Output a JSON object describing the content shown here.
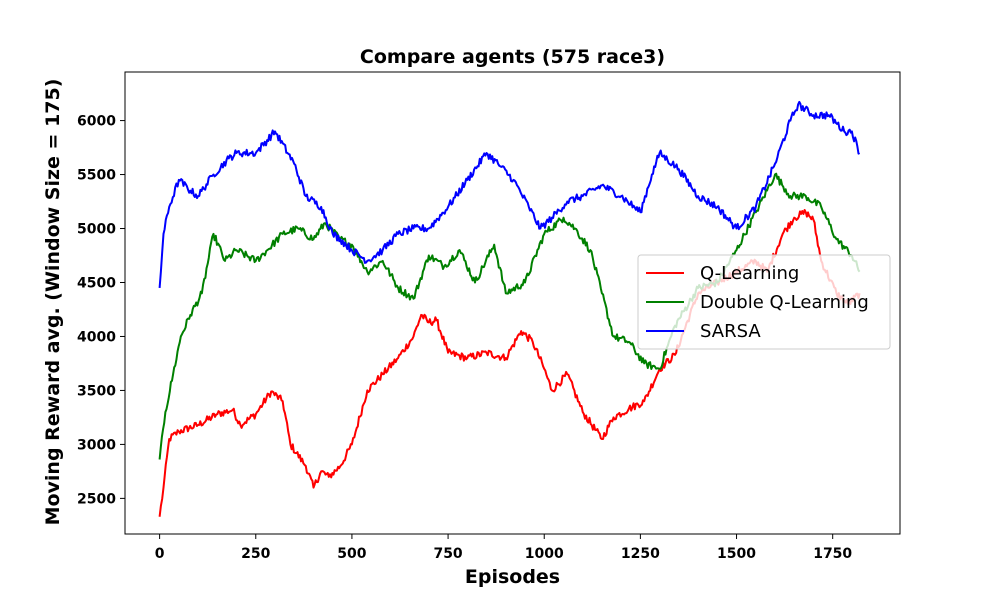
{
  "chart_data": {
    "type": "line",
    "title": "Compare agents (575 race3)",
    "xlabel": "Episodes",
    "ylabel": "Moving Reward avg. (Window Size = 175)",
    "xlim": [
      -90,
      1925
    ],
    "ylim": [
      2170,
      6450
    ],
    "xticks": [
      0,
      250,
      500,
      750,
      1000,
      1250,
      1500,
      1750
    ],
    "yticks": [
      2500,
      3000,
      3500,
      4000,
      4500,
      5000,
      5500,
      6000
    ],
    "grid": false,
    "legend_position": "center-right",
    "series": [
      {
        "name": "Q-Learning",
        "color": "#ff0000",
        "x": [
          0,
          10,
          25,
          50,
          100,
          150,
          190,
          210,
          250,
          290,
          320,
          340,
          380,
          400,
          420,
          440,
          470,
          500,
          540,
          580,
          620,
          660,
          680,
          700,
          720,
          750,
          800,
          850,
          900,
          940,
          970,
          1000,
          1020,
          1060,
          1100,
          1150,
          1180,
          1220,
          1260,
          1300,
          1340,
          1400,
          1450,
          1500,
          1550,
          1580,
          1620,
          1650,
          1680,
          1700,
          1720,
          1760,
          1790,
          1820
        ],
        "values": [
          2330,
          2600,
          3050,
          3120,
          3180,
          3280,
          3320,
          3180,
          3280,
          3490,
          3400,
          3000,
          2800,
          2600,
          2750,
          2700,
          2800,
          3000,
          3500,
          3650,
          3800,
          4000,
          4200,
          4130,
          4150,
          3850,
          3800,
          3850,
          3800,
          4050,
          3950,
          3700,
          3500,
          3650,
          3300,
          3050,
          3250,
          3330,
          3400,
          3700,
          3830,
          4400,
          4500,
          4600,
          4700,
          4600,
          4950,
          5100,
          5150,
          5080,
          4700,
          4400,
          4300,
          4400
        ]
      },
      {
        "name": "Double Q-Learning",
        "color": "#008000",
        "x": [
          0,
          15,
          35,
          55,
          80,
          110,
          140,
          170,
          200,
          250,
          280,
          320,
          360,
          400,
          430,
          470,
          500,
          540,
          580,
          620,
          660,
          700,
          740,
          780,
          820,
          870,
          900,
          950,
          1000,
          1050,
          1080,
          1120,
          1150,
          1180,
          1220,
          1260,
          1300,
          1340,
          1400,
          1450,
          1500,
          1550,
          1600,
          1640,
          1680,
          1720,
          1760,
          1800,
          1820
        ],
        "values": [
          2860,
          3300,
          3650,
          4000,
          4200,
          4400,
          4950,
          4700,
          4800,
          4700,
          4800,
          4950,
          5000,
          4900,
          5050,
          4900,
          4850,
          4600,
          4700,
          4450,
          4350,
          4750,
          4650,
          4800,
          4500,
          4850,
          4400,
          4500,
          4950,
          5100,
          5000,
          4800,
          4400,
          4000,
          3950,
          3750,
          3700,
          4100,
          4450,
          4500,
          4800,
          5150,
          5500,
          5300,
          5300,
          5200,
          4900,
          4750,
          4600
        ]
      },
      {
        "name": "SARSA",
        "color": "#0000ff",
        "x": [
          0,
          10,
          25,
          50,
          80,
          100,
          140,
          180,
          200,
          250,
          300,
          350,
          380,
          420,
          450,
          470,
          500,
          540,
          580,
          620,
          660,
          700,
          750,
          800,
          850,
          880,
          920,
          960,
          990,
          1020,
          1060,
          1100,
          1150,
          1200,
          1250,
          1280,
          1300,
          1350,
          1400,
          1450,
          1500,
          1550,
          1600,
          1640,
          1660,
          1700,
          1740,
          1780,
          1800,
          1820
        ],
        "values": [
          4450,
          4950,
          5200,
          5450,
          5350,
          5300,
          5500,
          5650,
          5700,
          5700,
          5900,
          5600,
          5300,
          5200,
          4950,
          4900,
          4800,
          4700,
          4800,
          4950,
          5000,
          5000,
          5200,
          5450,
          5700,
          5600,
          5450,
          5200,
          5000,
          5100,
          5250,
          5300,
          5400,
          5300,
          5150,
          5500,
          5700,
          5550,
          5300,
          5200,
          5000,
          5200,
          5600,
          6000,
          6150,
          6050,
          6050,
          5900,
          5900,
          5700
        ]
      }
    ]
  }
}
